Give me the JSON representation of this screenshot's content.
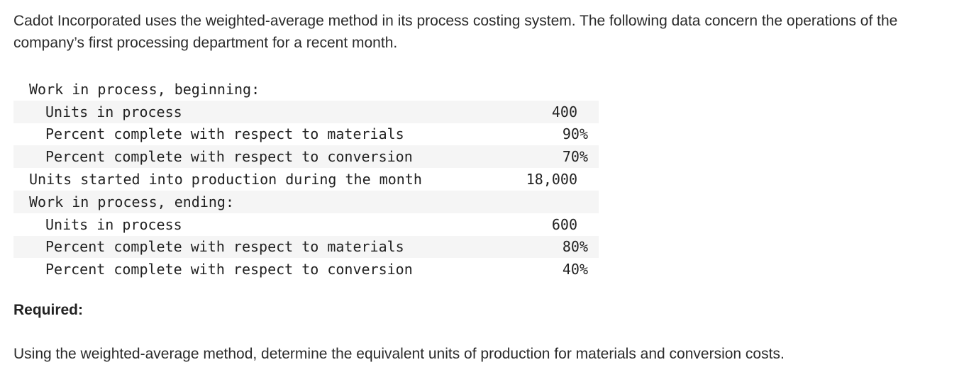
{
  "intro": {
    "text": "Cadot Incorporated uses the weighted-average method in its process costing system. The following data concern the operations of the company’s first processing department for a recent month."
  },
  "table": {
    "rows": [
      {
        "label": "Work in process, beginning:",
        "value": "",
        "indent": false,
        "shaded": false
      },
      {
        "label": "Units in process",
        "value": "400",
        "indent": true,
        "shaded": true
      },
      {
        "label": "Percent complete with respect to materials",
        "value": "90%",
        "indent": true,
        "shaded": false
      },
      {
        "label": "Percent complete with respect to conversion",
        "value": "70%",
        "indent": true,
        "shaded": true
      },
      {
        "label": "Units started into production during the month",
        "value": "18,000",
        "indent": false,
        "shaded": false
      },
      {
        "label": "Work in process, ending:",
        "value": "",
        "indent": false,
        "shaded": true
      },
      {
        "label": "Units in process",
        "value": "600",
        "indent": true,
        "shaded": false
      },
      {
        "label": "Percent complete with respect to materials",
        "value": "80%",
        "indent": true,
        "shaded": true
      },
      {
        "label": "Percent complete with respect to conversion",
        "value": "40%",
        "indent": true,
        "shaded": false
      }
    ]
  },
  "required": {
    "heading": "Required:",
    "instruction": "Using the weighted-average method, determine the equivalent units of production for materials and conversion costs."
  },
  "colors": {
    "text": "#2b2b2b",
    "row_shade": "#f5f5f5",
    "background": "#ffffff"
  }
}
